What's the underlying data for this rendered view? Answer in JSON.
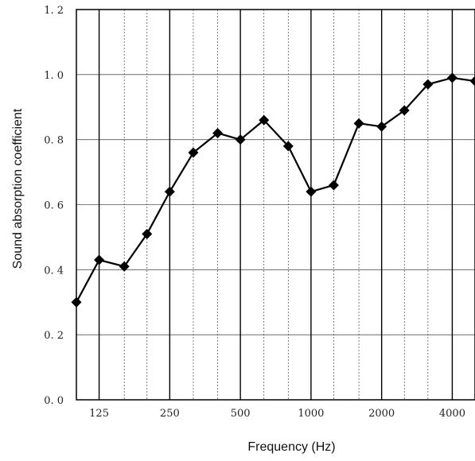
{
  "chart_data": {
    "type": "line",
    "title": "",
    "xlabel": "Frequency (Hz)",
    "ylabel": "Sound absorption coefficient",
    "x_scale": "log",
    "xlim": [
      100,
      5000
    ],
    "ylim": [
      0,
      1.2
    ],
    "grid": true,
    "x_tick_labels": [
      {
        "value": 125,
        "label": "125"
      },
      {
        "value": 250,
        "label": "250"
      },
      {
        "value": 500,
        "label": "500"
      },
      {
        "value": 1000,
        "label": "1000"
      },
      {
        "value": 2000,
        "label": "2000"
      },
      {
        "value": 4000,
        "label": "4000"
      }
    ],
    "y_tick_labels": [
      {
        "value": 0,
        "label": "0. 0"
      },
      {
        "value": 0.2,
        "label": "0. 2"
      },
      {
        "value": 0.4,
        "label": "0. 4"
      },
      {
        "value": 0.6,
        "label": "0. 6"
      },
      {
        "value": 0.8,
        "label": "0. 8"
      },
      {
        "value": 1.0,
        "label": "1. 0"
      },
      {
        "value": 1.2,
        "label": "1. 2"
      }
    ],
    "series": [
      {
        "marker": "diamond",
        "color": "#000000",
        "x": [
          100,
          125,
          160,
          200,
          250,
          315,
          400,
          500,
          630,
          800,
          1000,
          1250,
          1600,
          2000,
          2500,
          3150,
          4000,
          5000
        ],
        "y": [
          0.3,
          0.43,
          0.41,
          0.51,
          0.64,
          0.76,
          0.82,
          0.8,
          0.86,
          0.78,
          0.64,
          0.66,
          0.85,
          0.84,
          0.89,
          0.97,
          0.99,
          0.98
        ]
      }
    ]
  }
}
